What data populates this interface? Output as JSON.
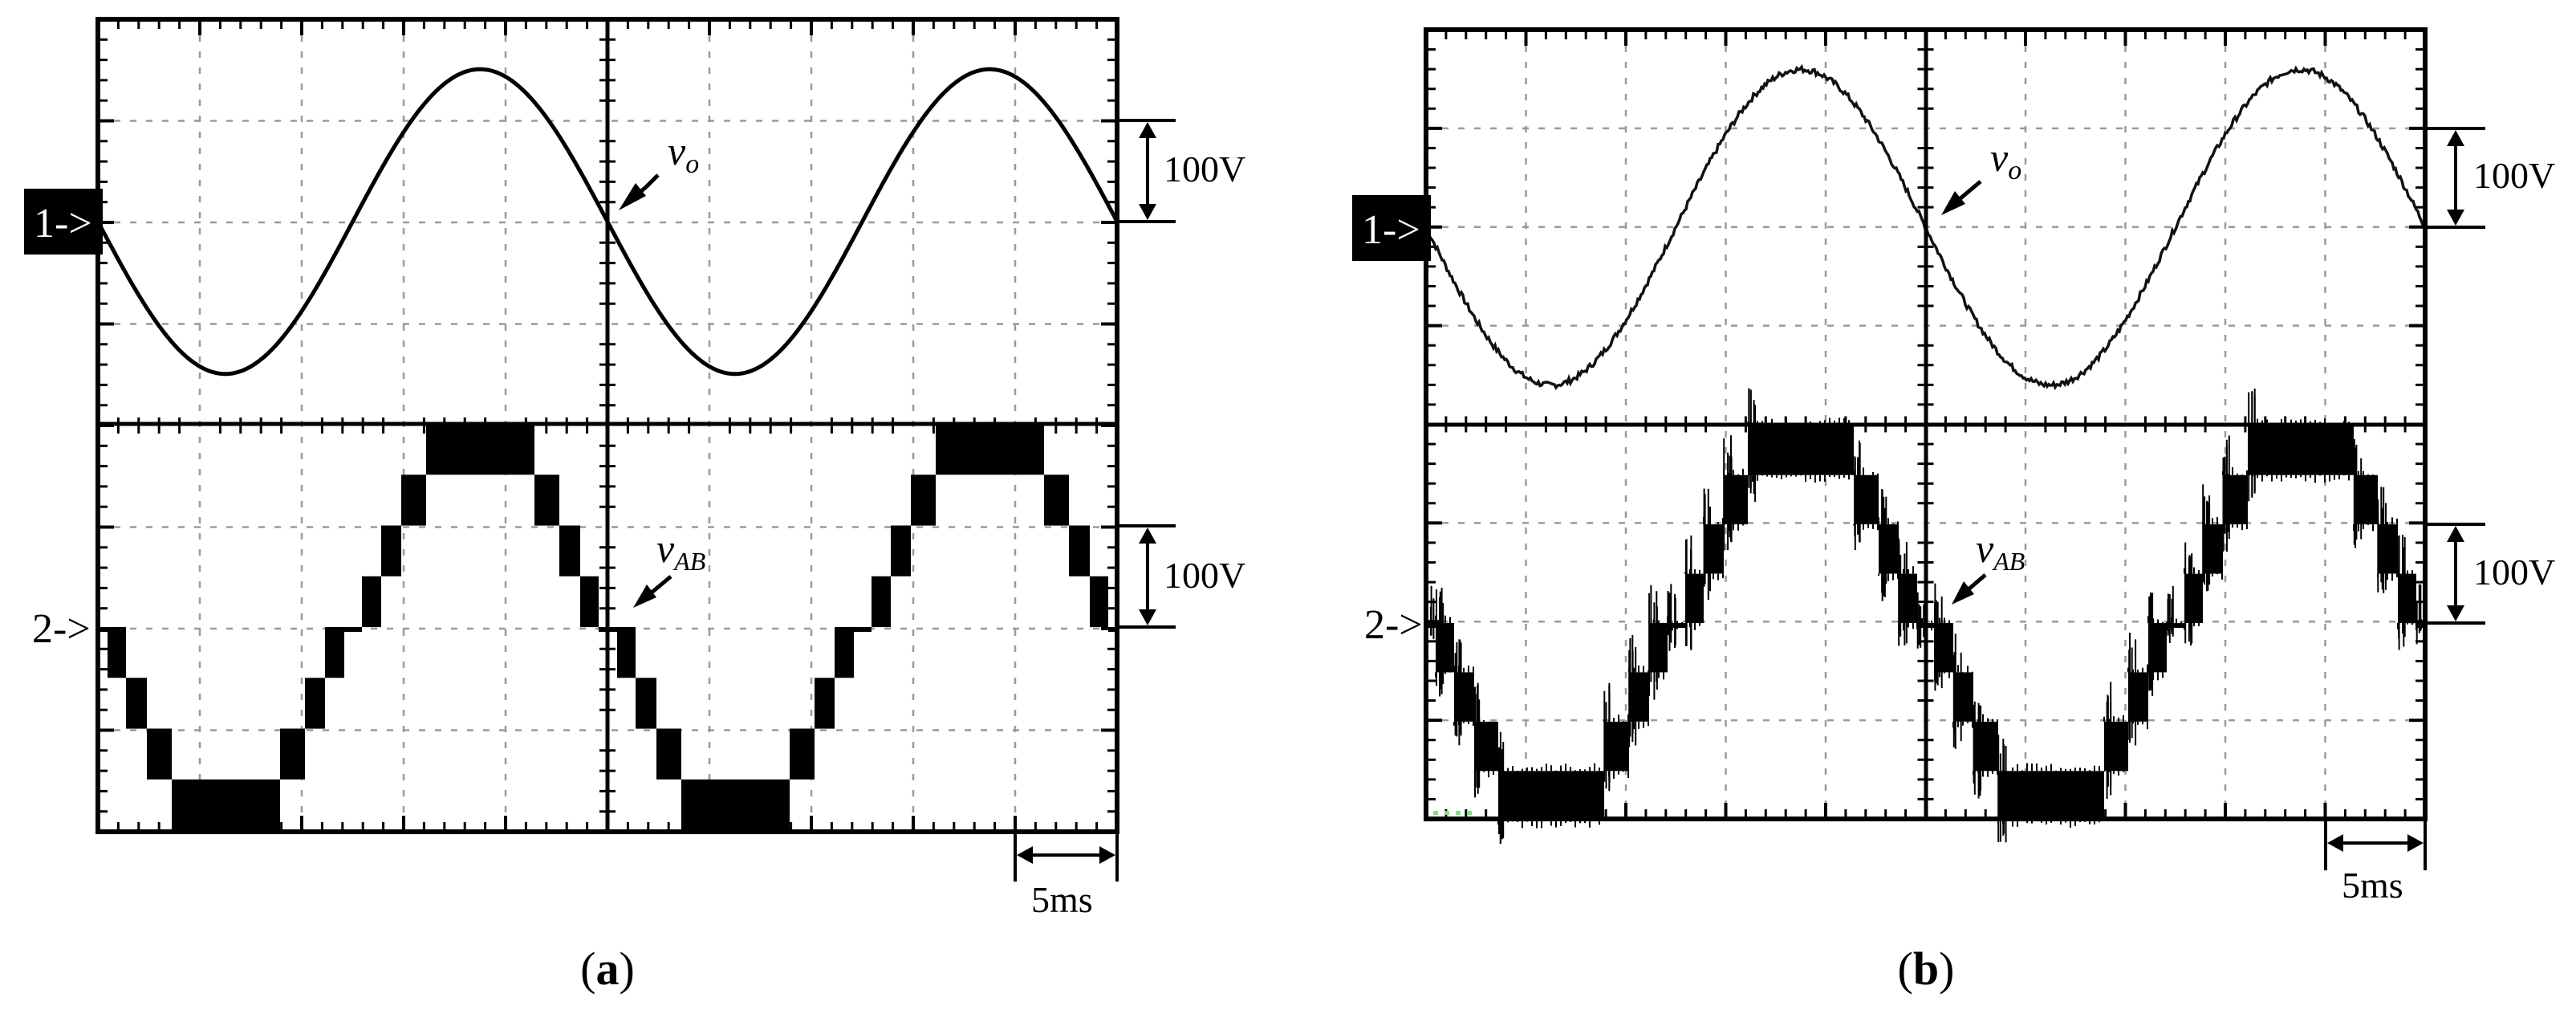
{
  "panels": [
    {
      "caption_paren_open": "(",
      "caption_letter": "a",
      "caption_paren_close": ")",
      "ch1_marker": "1->",
      "ch2_marker": "2->",
      "ch1_label": "v",
      "ch1_label_sub": "o",
      "ch2_label": "v",
      "ch2_label_sub": "AB",
      "ch1_scale_label": "100V",
      "ch2_scale_label": "100V",
      "time_scale_label": "5ms",
      "noisy": false
    },
    {
      "caption_paren_open": "(",
      "caption_letter": "b",
      "caption_paren_close": ")",
      "ch1_marker": "1->",
      "ch2_marker": "2->",
      "ch1_label": "v",
      "ch1_label_sub": "o",
      "ch2_label": "v",
      "ch2_label_sub": "AB",
      "ch1_scale_label": "100V",
      "ch2_scale_label": "100V",
      "time_scale_label": "5ms",
      "noisy": true
    }
  ],
  "chart_data": [
    {
      "type": "line",
      "panel": "a",
      "x_unit": "ms",
      "time_per_division": 5,
      "volts_per_division": 100,
      "divisions_x": 10,
      "divisions_y": 8,
      "grid": true,
      "series": [
        {
          "name": "v_o",
          "channel": 1,
          "waveform": "sine",
          "amplitude_V": 150,
          "frequency_Hz": 40,
          "phase_at_center_deg": 180,
          "duration_ms": 50
        },
        {
          "name": "v_AB",
          "channel": 2,
          "waveform": "multilevel-staircase",
          "levels": 9,
          "level_step_V": 50,
          "peak_V": 200,
          "frequency_Hz": 40,
          "duration_ms": 50
        }
      ]
    },
    {
      "type": "line",
      "panel": "b",
      "x_unit": "ms",
      "time_per_division": 5,
      "volts_per_division": 100,
      "divisions_x": 10,
      "divisions_y": 8,
      "grid": true,
      "series": [
        {
          "name": "v_o",
          "channel": 1,
          "waveform": "sine",
          "amplitude_V": 160,
          "frequency_Hz": 40,
          "phase_at_center_deg": 180,
          "duration_ms": 50
        },
        {
          "name": "v_AB",
          "channel": 2,
          "waveform": "multilevel-staircase",
          "levels": 9,
          "level_step_V": 50,
          "peak_V": 200,
          "frequency_Hz": 40,
          "duration_ms": 50
        }
      ]
    }
  ]
}
